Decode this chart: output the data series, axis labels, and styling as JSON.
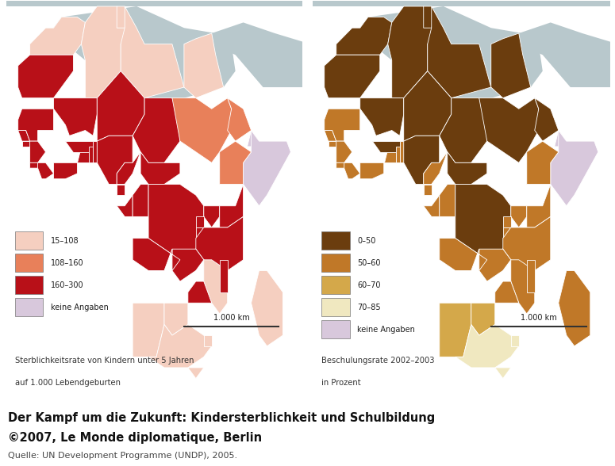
{
  "background_color": "#ffffff",
  "panel_bg": "#d0dde5",
  "title_line1": "Der Kampf um die Zukunft: Kindersterblichkeit und Schulbildung",
  "title_line2": "©2007, Le Monde diplomatique, Berlin",
  "source_line": "Quelle: UN Development Programme (UNDP), 2005.",
  "left_panel": {
    "legend": [
      {
        "label": "15–108",
        "color": "#f5cfc0"
      },
      {
        "label": "108–160",
        "color": "#e8805a"
      },
      {
        "label": "160–300",
        "color": "#b81018"
      },
      {
        "label": "keine Angaben",
        "color": "#d8c8dc"
      }
    ],
    "scale_text": "1.000 km",
    "caption_line1": "Sterblichkeitsrate von Kindern unter 5 Jahren",
    "caption_line2": "auf 1.000 Lebendgeburten"
  },
  "right_panel": {
    "legend": [
      {
        "label": "0–50",
        "color": "#6b3d0e"
      },
      {
        "label": "50–60",
        "color": "#c07828"
      },
      {
        "label": "60–70",
        "color": "#d4a84a"
      },
      {
        "label": "70–85",
        "color": "#f0e8c0"
      },
      {
        "label": "keine Angaben",
        "color": "#d8c8dc"
      }
    ],
    "scale_text": "1.000 km",
    "caption_line1": "Beschulungsrate 2002–2003",
    "caption_line2": "in Prozent"
  },
  "grey_land": "#b8c8cc",
  "africa_outline_color": "#888888"
}
